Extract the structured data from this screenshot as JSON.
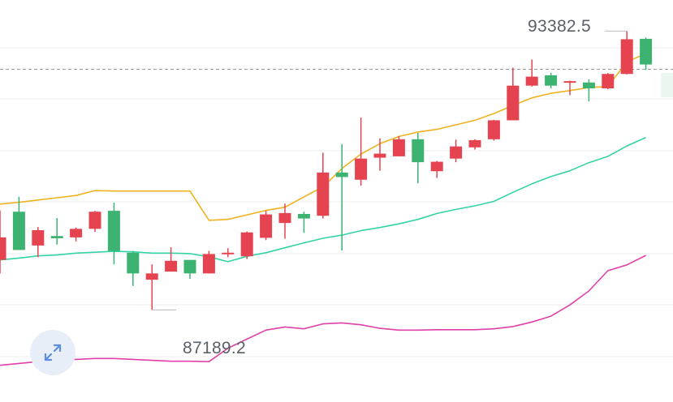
{
  "labels": {
    "high": "93382.5",
    "low": "87189.2"
  },
  "expand_button": {
    "icon": "expand-arrows-icon"
  },
  "colors": {
    "up": "#3cb371",
    "down": "#e5434f",
    "upper_band": "#f0b21e",
    "middle_band": "#34d3a6",
    "lower_band": "#e040a8",
    "grid": "#eeeeee",
    "current_price_line": "#999999"
  },
  "chart_data": {
    "type": "candlestick",
    "title": "",
    "xlabel": "",
    "ylabel": "",
    "ylim": [
      85000,
      94000
    ],
    "grid": true,
    "high_marker": 93382.5,
    "low_marker": 87189.2,
    "current_price": 92533,
    "candles": [
      {
        "o": 88800,
        "h": 89400,
        "l": 88000,
        "c": 88300,
        "dir": "down"
      },
      {
        "o": 88520,
        "h": 89700,
        "l": 88520,
        "c": 89370,
        "dir": "up"
      },
      {
        "o": 88960,
        "h": 89030,
        "l": 88360,
        "c": 88620,
        "dir": "down"
      },
      {
        "o": 88780,
        "h": 89230,
        "l": 88640,
        "c": 88830,
        "dir": "up"
      },
      {
        "o": 88990,
        "h": 89020,
        "l": 88710,
        "c": 88800,
        "dir": "down"
      },
      {
        "o": 89370,
        "h": 89390,
        "l": 88920,
        "c": 88990,
        "dir": "down"
      },
      {
        "o": 88500,
        "h": 89570,
        "l": 88200,
        "c": 89390,
        "dir": "up"
      },
      {
        "o": 88000,
        "h": 88500,
        "l": 87720,
        "c": 88460,
        "dir": "up"
      },
      {
        "o": 88000,
        "h": 88200,
        "l": 87190,
        "c": 87860,
        "dir": "down"
      },
      {
        "o": 88280,
        "h": 88580,
        "l": 88040,
        "c": 88040,
        "dir": "down"
      },
      {
        "o": 88000,
        "h": 88280,
        "l": 87880,
        "c": 88300,
        "dir": "up"
      },
      {
        "o": 88430,
        "h": 88500,
        "l": 88000,
        "c": 88000,
        "dir": "down"
      },
      {
        "o": 88460,
        "h": 88560,
        "l": 88360,
        "c": 88460,
        "dir": "down"
      },
      {
        "o": 88910,
        "h": 88930,
        "l": 88320,
        "c": 88380,
        "dir": "down"
      },
      {
        "o": 89310,
        "h": 89390,
        "l": 88740,
        "c": 88790,
        "dir": "down"
      },
      {
        "o": 89340,
        "h": 89550,
        "l": 88770,
        "c": 89120,
        "dir": "down"
      },
      {
        "o": 89220,
        "h": 89370,
        "l": 88900,
        "c": 89320,
        "dir": "up"
      },
      {
        "o": 90240,
        "h": 90680,
        "l": 89220,
        "c": 89280,
        "dir": "down"
      },
      {
        "o": 90140,
        "h": 90870,
        "l": 88510,
        "c": 90240,
        "dir": "up"
      },
      {
        "o": 90550,
        "h": 91460,
        "l": 89950,
        "c": 90080,
        "dir": "down"
      },
      {
        "o": 90660,
        "h": 91000,
        "l": 90280,
        "c": 90570,
        "dir": "down"
      },
      {
        "o": 90980,
        "h": 91050,
        "l": 90600,
        "c": 90600,
        "dir": "down"
      },
      {
        "o": 90470,
        "h": 91120,
        "l": 90000,
        "c": 90980,
        "dir": "up"
      },
      {
        "o": 90480,
        "h": 90500,
        "l": 90120,
        "c": 90270,
        "dir": "down"
      },
      {
        "o": 90820,
        "h": 90970,
        "l": 90470,
        "c": 90550,
        "dir": "down"
      },
      {
        "o": 90960,
        "h": 90980,
        "l": 90750,
        "c": 90800,
        "dir": "down"
      },
      {
        "o": 91400,
        "h": 91410,
        "l": 90950,
        "c": 90980,
        "dir": "down"
      },
      {
        "o": 92170,
        "h": 92570,
        "l": 91410,
        "c": 91400,
        "dir": "down"
      },
      {
        "o": 92370,
        "h": 92750,
        "l": 92150,
        "c": 92170,
        "dir": "down"
      },
      {
        "o": 92170,
        "h": 92450,
        "l": 92110,
        "c": 92400,
        "dir": "up"
      },
      {
        "o": 92270,
        "h": 92280,
        "l": 91960,
        "c": 92240,
        "dir": "down"
      },
      {
        "o": 92110,
        "h": 92310,
        "l": 91820,
        "c": 92240,
        "dir": "up"
      },
      {
        "o": 92430,
        "h": 92450,
        "l": 92090,
        "c": 92110,
        "dir": "down"
      },
      {
        "o": 93200,
        "h": 93380,
        "l": 92420,
        "c": 92430,
        "dir": "down"
      },
      {
        "o": 92640,
        "h": 93240,
        "l": 92520,
        "c": 93210,
        "dir": "up"
      }
    ],
    "series": [
      {
        "key": "upper",
        "values": [
          89540,
          89580,
          89630,
          89680,
          89730,
          89840,
          89830,
          89830,
          89830,
          89830,
          89830,
          89180,
          89200,
          89300,
          89400,
          89470,
          89700,
          89920,
          90330,
          90650,
          90880,
          91040,
          91140,
          91200,
          91300,
          91400,
          91550,
          91730,
          91900,
          92000,
          92060,
          92130,
          92150,
          92700,
          92880
        ]
      },
      {
        "key": "middle",
        "values": [
          88300,
          88340,
          88390,
          88410,
          88450,
          88470,
          88490,
          88480,
          88450,
          88450,
          88440,
          88370,
          88260,
          88380,
          88460,
          88570,
          88680,
          88780,
          88850,
          88950,
          89020,
          89100,
          89200,
          89330,
          89420,
          89500,
          89600,
          89800,
          89990,
          90150,
          90280,
          90460,
          90600,
          90830,
          91020
        ]
      },
      {
        "key": "lower",
        "values": [
          85960,
          86000,
          86040,
          86070,
          86090,
          86110,
          86110,
          86090,
          86070,
          86050,
          86050,
          86040,
          86340,
          86540,
          86740,
          86810,
          86770,
          86880,
          86900,
          86860,
          86780,
          86740,
          86740,
          86750,
          86750,
          86750,
          86770,
          86820,
          86920,
          87050,
          87300,
          87610,
          88060,
          88190,
          88400
        ]
      }
    ]
  }
}
